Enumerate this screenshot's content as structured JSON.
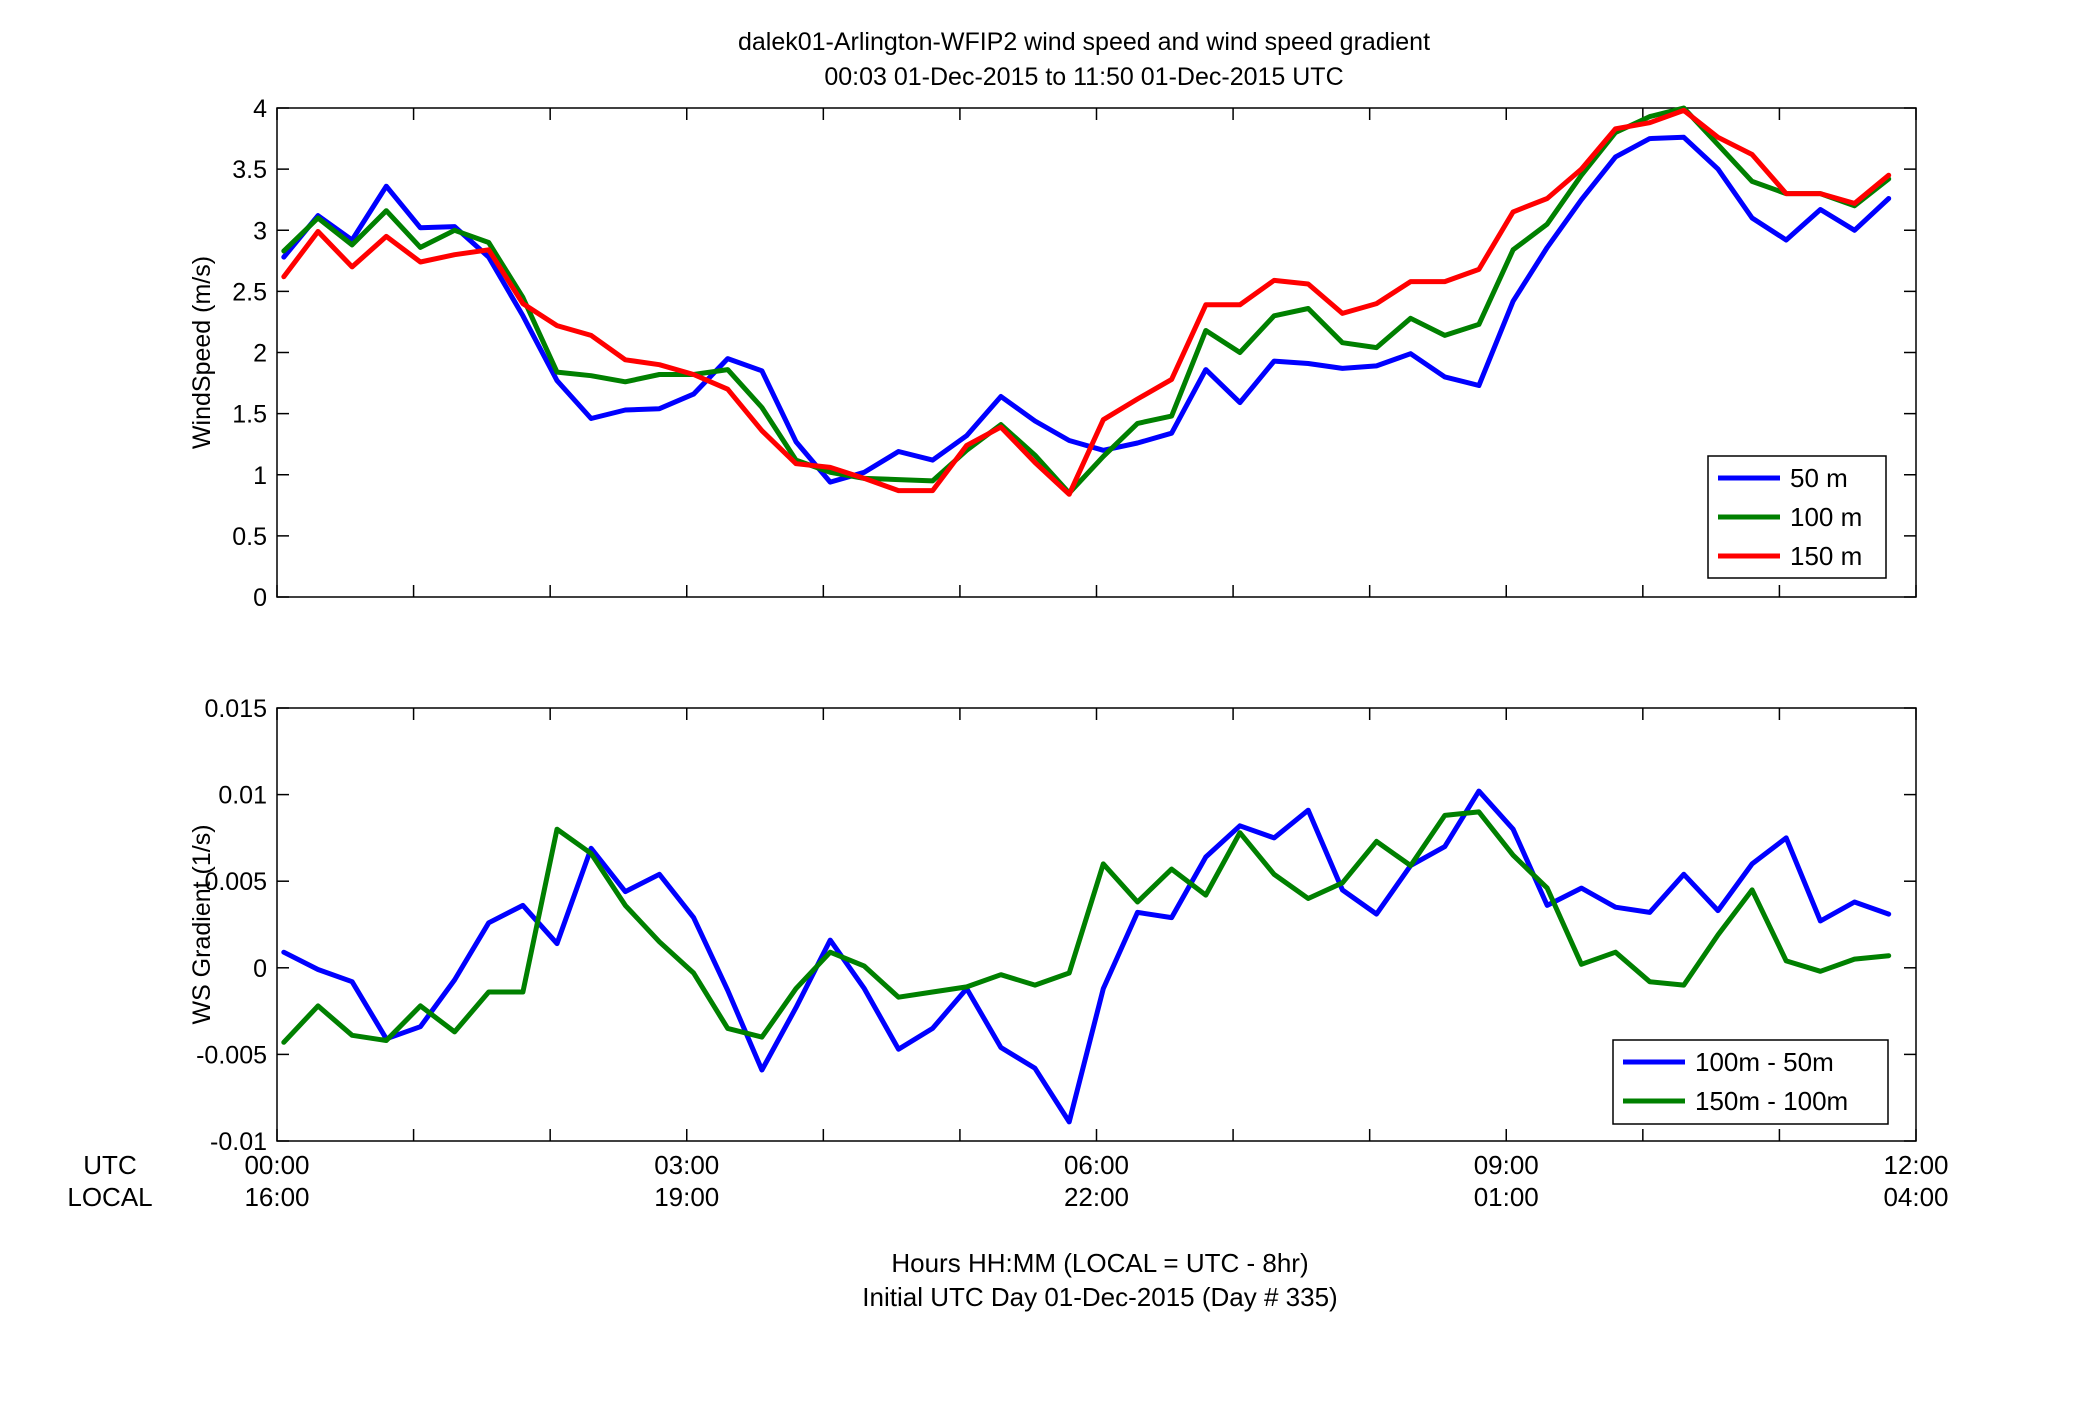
{
  "title_line1": "dalek01-Arlington-WFIP2  wind speed and wind speed gradient",
  "title_line2": "00:03 01-Dec-2015 to 11:50 01-Dec-2015  UTC",
  "xaxis": {
    "row1_label": "UTC",
    "row2_label": "LOCAL",
    "utc_ticks": [
      "00:00",
      "03:00",
      "06:00",
      "09:00",
      "12:00"
    ],
    "local_ticks": [
      "16:00",
      "19:00",
      "22:00",
      "01:00",
      "04:00"
    ],
    "footer_line1": "Hours HH:MM  (LOCAL = UTC - 8hr)",
    "footer_line2": "Initial UTC Day 01-Dec-2015 (Day # 335)"
  },
  "chart_data": [
    {
      "type": "line",
      "ylabel": "WindSpeed (m/s)",
      "ylim": [
        0,
        4
      ],
      "yticks": [
        "0",
        "0.5",
        "1",
        "1.5",
        "2",
        "2.5",
        "3",
        "3.5",
        "4"
      ],
      "xlim": [
        0,
        12
      ],
      "legend_position": "bottom-right",
      "x": [
        0.05,
        0.3,
        0.55,
        0.8,
        1.05,
        1.3,
        1.55,
        1.8,
        2.05,
        2.3,
        2.55,
        2.8,
        3.05,
        3.3,
        3.55,
        3.8,
        4.05,
        4.3,
        4.55,
        4.8,
        5.05,
        5.3,
        5.55,
        5.8,
        6.05,
        6.3,
        6.55,
        6.8,
        7.05,
        7.3,
        7.55,
        7.8,
        8.05,
        8.3,
        8.55,
        8.8,
        9.05,
        9.3,
        9.55,
        9.8,
        10.05,
        10.3,
        10.55,
        10.8,
        11.05,
        11.3,
        11.55,
        11.8
      ],
      "series": [
        {
          "name": "50 m",
          "color": "#0000ff",
          "values": [
            2.78,
            3.12,
            2.92,
            3.36,
            3.02,
            3.03,
            2.78,
            2.3,
            1.77,
            1.46,
            1.53,
            1.54,
            1.66,
            1.95,
            1.85,
            1.27,
            0.94,
            1.02,
            1.19,
            1.12,
            1.32,
            1.64,
            1.44,
            1.28,
            1.2,
            1.26,
            1.34,
            1.86,
            1.59,
            1.93,
            1.91,
            1.87,
            1.89,
            1.99,
            1.8,
            1.73,
            2.42,
            2.86,
            3.25,
            3.6,
            3.75,
            3.76,
            3.5,
            3.1,
            2.92,
            3.17,
            3.0,
            3.26
          ]
        },
        {
          "name": "100 m",
          "color": "#008000",
          "values": [
            2.83,
            3.1,
            2.88,
            3.16,
            2.86,
            3.0,
            2.9,
            2.45,
            1.84,
            1.81,
            1.76,
            1.82,
            1.82,
            1.86,
            1.55,
            1.12,
            1.02,
            0.97,
            0.96,
            0.95,
            1.2,
            1.41,
            1.16,
            0.85,
            1.15,
            1.42,
            1.48,
            2.18,
            2.0,
            2.3,
            2.36,
            2.08,
            2.04,
            2.28,
            2.14,
            2.23,
            2.84,
            3.05,
            3.45,
            3.8,
            3.93,
            4.0,
            3.7,
            3.4,
            3.3,
            3.3,
            3.2,
            3.42
          ]
        },
        {
          "name": "150 m",
          "color": "#ff0000",
          "values": [
            2.62,
            2.99,
            2.7,
            2.95,
            2.74,
            2.8,
            2.84,
            2.4,
            2.22,
            2.14,
            1.94,
            1.9,
            1.82,
            1.7,
            1.36,
            1.09,
            1.06,
            0.97,
            0.87,
            0.87,
            1.24,
            1.39,
            1.1,
            0.84,
            1.45,
            1.62,
            1.78,
            2.39,
            2.39,
            2.59,
            2.56,
            2.32,
            2.4,
            2.58,
            2.58,
            2.68,
            3.15,
            3.26,
            3.5,
            3.83,
            3.88,
            3.98,
            3.76,
            3.62,
            3.3,
            3.3,
            3.22,
            3.45
          ]
        }
      ]
    },
    {
      "type": "line",
      "ylabel": "WS Gradient (1/s)",
      "ylim": [
        -0.01,
        0.015
      ],
      "yticks": [
        "-0.01",
        "-0.005",
        "0",
        "0.005",
        "0.01",
        "0.015"
      ],
      "xlim": [
        0,
        12
      ],
      "legend_position": "bottom-right",
      "x": [
        0.05,
        0.3,
        0.55,
        0.8,
        1.05,
        1.3,
        1.55,
        1.8,
        2.05,
        2.3,
        2.55,
        2.8,
        3.05,
        3.3,
        3.55,
        3.8,
        4.05,
        4.3,
        4.55,
        4.8,
        5.05,
        5.3,
        5.55,
        5.8,
        6.05,
        6.3,
        6.55,
        6.8,
        7.05,
        7.3,
        7.55,
        7.8,
        8.05,
        8.3,
        8.55,
        8.8,
        9.05,
        9.3,
        9.55,
        9.8,
        10.05,
        10.3,
        10.55,
        10.8,
        11.05,
        11.3,
        11.55,
        11.8
      ],
      "series": [
        {
          "name": "100m - 50m",
          "color": "#0000ff",
          "values": [
            0.0009,
            -0.0001,
            -0.0008,
            -0.0041,
            -0.0034,
            -0.0007,
            0.0026,
            0.0036,
            0.0014,
            0.0069,
            0.0044,
            0.0054,
            0.0029,
            -0.0013,
            -0.0059,
            -0.0023,
            0.0016,
            -0.0012,
            -0.0047,
            -0.0035,
            -0.0012,
            -0.0046,
            -0.0058,
            -0.0089,
            -0.0012,
            0.0032,
            0.0029,
            0.0064,
            0.0082,
            0.0075,
            0.0091,
            0.0045,
            0.0031,
            0.0059,
            0.007,
            0.0102,
            0.008,
            0.0036,
            0.0046,
            0.0035,
            0.0032,
            0.0054,
            0.0033,
            0.006,
            0.0075,
            0.0027,
            0.0038,
            0.0031
          ]
        },
        {
          "name": "150m - 100m",
          "color": "#008000",
          "values": [
            -0.0043,
            -0.0022,
            -0.0039,
            -0.0042,
            -0.0022,
            -0.0037,
            -0.0014,
            -0.0014,
            0.008,
            0.0066,
            0.0036,
            0.0015,
            -0.0003,
            -0.0035,
            -0.004,
            -0.0012,
            0.0009,
            0.0001,
            -0.0017,
            -0.0014,
            -0.0011,
            -0.0004,
            -0.001,
            -0.0003,
            0.006,
            0.0038,
            0.0057,
            0.0042,
            0.0078,
            0.0054,
            0.004,
            0.0049,
            0.0073,
            0.0059,
            0.0088,
            0.009,
            0.0065,
            0.0046,
            0.0002,
            0.0009,
            -0.0008,
            -0.001,
            0.0019,
            0.0045,
            0.0004,
            -0.0002,
            0.0005,
            0.0007
          ]
        }
      ]
    }
  ]
}
